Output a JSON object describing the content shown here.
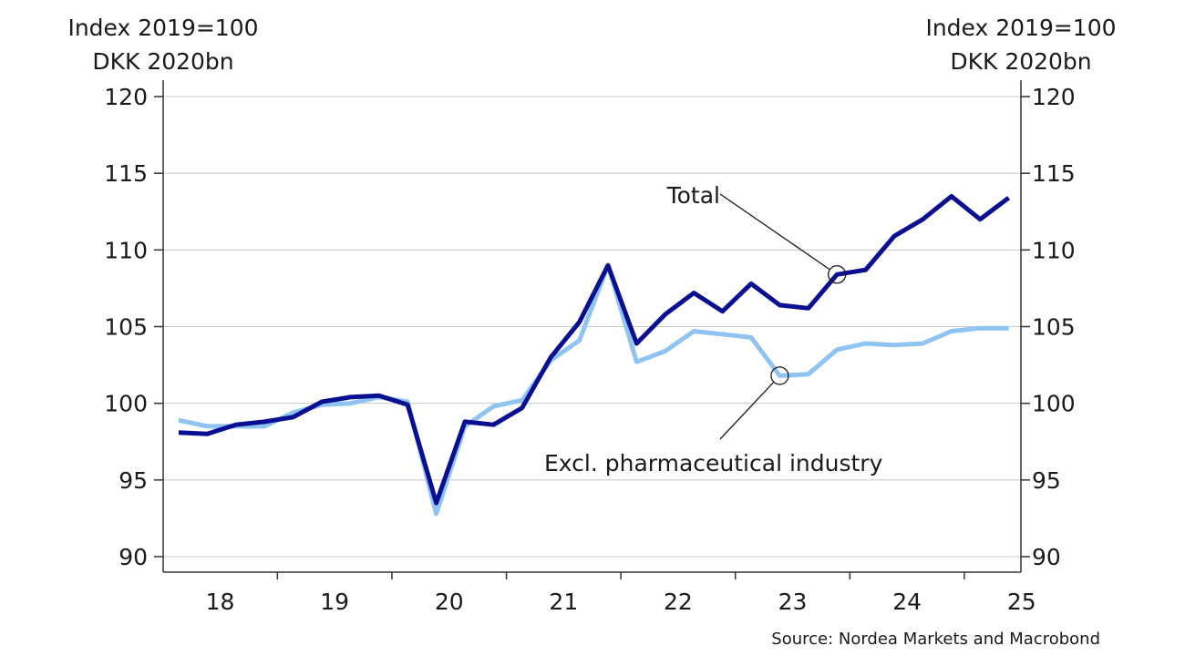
{
  "chart_data": {
    "type": "line",
    "left_unit_line1": "Index 2019=100",
    "left_unit_line2": "DKK 2020bn",
    "right_unit_line1": "Index 2019=100",
    "right_unit_line2": "DKK 2020bn",
    "ylim": [
      90,
      120
    ],
    "y_ticks": [
      "120",
      "115",
      "110",
      "105",
      "100",
      "95",
      "90"
    ],
    "x_tick_labels": [
      "18",
      "19",
      "20",
      "21",
      "22",
      "23",
      "24",
      "25"
    ],
    "x_range_quarters": [
      "2018-Q1",
      "2025-Q2"
    ],
    "grid": true,
    "colors": {
      "total": "#0a0f91",
      "excl": "#8ec3f2"
    },
    "series": [
      {
        "name": "Total",
        "x": [
          "2018-Q1",
          "2018-Q2",
          "2018-Q3",
          "2018-Q4",
          "2019-Q1",
          "2019-Q2",
          "2019-Q3",
          "2019-Q4",
          "2020-Q1",
          "2020-Q2",
          "2020-Q3",
          "2020-Q4",
          "2021-Q1",
          "2021-Q2",
          "2021-Q3",
          "2021-Q4",
          "2022-Q1",
          "2022-Q2",
          "2022-Q3",
          "2022-Q4",
          "2023-Q1",
          "2023-Q2",
          "2023-Q3",
          "2023-Q4",
          "2024-Q1",
          "2024-Q2",
          "2024-Q3",
          "2024-Q4",
          "2025-Q1",
          "2025-Q2"
        ],
        "values": [
          98.1,
          98.0,
          98.6,
          98.8,
          99.1,
          100.1,
          100.4,
          100.5,
          99.9,
          93.5,
          98.8,
          98.6,
          99.7,
          103.0,
          105.3,
          109.0,
          103.9,
          105.8,
          107.2,
          106.0,
          107.8,
          106.4,
          106.2,
          108.4,
          108.7,
          110.9,
          112.0,
          113.5,
          112.0,
          113.4
        ]
      },
      {
        "name": "Excl. pharmaceutical industry",
        "x": [
          "2018-Q1",
          "2018-Q2",
          "2018-Q3",
          "2018-Q4",
          "2019-Q1",
          "2019-Q2",
          "2019-Q3",
          "2019-Q4",
          "2020-Q1",
          "2020-Q2",
          "2020-Q3",
          "2020-Q4",
          "2021-Q1",
          "2021-Q2",
          "2021-Q3",
          "2021-Q4",
          "2022-Q1",
          "2022-Q2",
          "2022-Q3",
          "2022-Q4",
          "2023-Q1",
          "2023-Q2",
          "2023-Q3",
          "2023-Q4",
          "2024-Q1",
          "2024-Q2",
          "2024-Q3",
          "2024-Q4",
          "2025-Q1",
          "2025-Q2"
        ],
        "values": [
          98.9,
          98.5,
          98.5,
          98.5,
          99.4,
          99.9,
          100.0,
          100.4,
          100.1,
          92.8,
          98.5,
          99.8,
          100.2,
          102.8,
          104.1,
          109.0,
          102.7,
          103.4,
          104.7,
          104.5,
          104.3,
          101.8,
          101.9,
          103.5,
          103.9,
          103.8,
          103.9,
          104.7,
          104.9,
          104.9
        ]
      }
    ],
    "annotations": [
      {
        "text": "Total",
        "series": "Total",
        "x": "2023-Q4",
        "y": 108.4
      },
      {
        "text": "Excl. pharmaceutical industry",
        "series": "Excl. pharmaceutical industry",
        "x": "2023-Q2",
        "y": 101.8
      }
    ],
    "source": "Source: Nordea Markets and Macrobond"
  }
}
